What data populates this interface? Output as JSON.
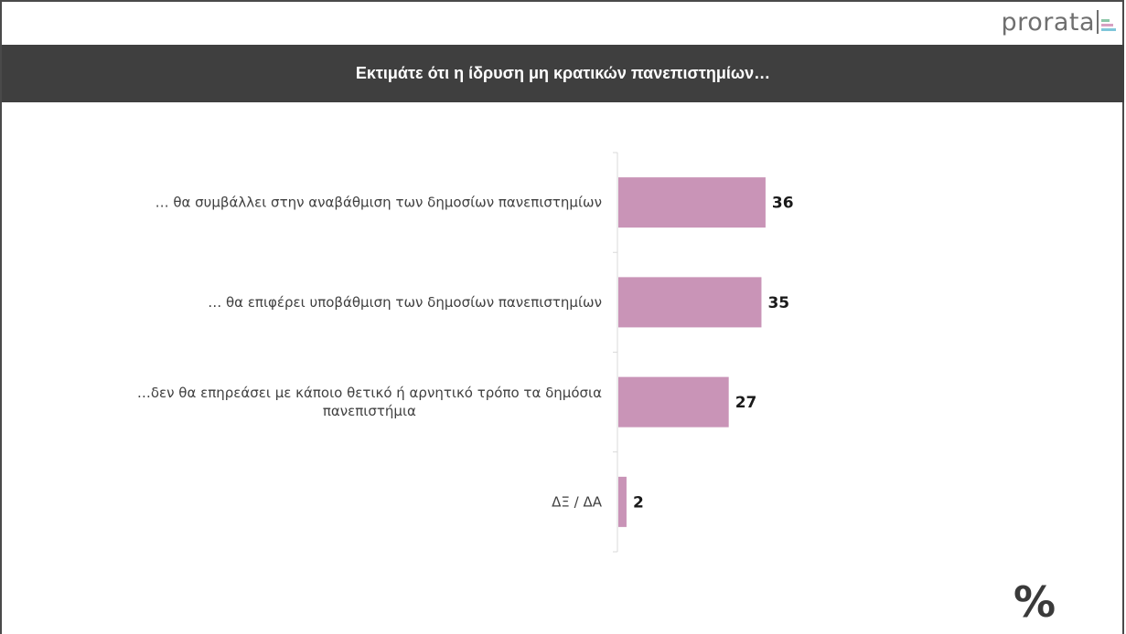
{
  "logo": {
    "text": "prorata"
  },
  "title": "Εκτιμάτε ότι η ίδρυση μη κρατικών πανεπιστημίων…",
  "unit_symbol": "%",
  "colors": {
    "bar": "#c994b7",
    "header_bg": "#3f3f3f",
    "axis": "#d9d9d9"
  },
  "chart_data": {
    "type": "bar",
    "orientation": "horizontal",
    "categories": [
      [
        "… θα συμβάλλει στην αναβάθμιση των δημοσίων πανεπιστημίων"
      ],
      [
        "… θα επιφέρει υποβάθμιση των δημοσίων πανεπιστημίων"
      ],
      [
        "…δεν θα επηρεάσει με κάποιο θετικό ή αρνητικό τρόπο τα δημόσια",
        "πανεπιστήμια"
      ],
      [
        "ΔΞ / ΔΑ"
      ]
    ],
    "values": [
      36,
      35,
      27,
      2
    ],
    "data_labels": [
      "36",
      "35",
      "27",
      "2"
    ],
    "xlim": [
      0,
      100
    ],
    "grid": false,
    "legend": "none"
  }
}
